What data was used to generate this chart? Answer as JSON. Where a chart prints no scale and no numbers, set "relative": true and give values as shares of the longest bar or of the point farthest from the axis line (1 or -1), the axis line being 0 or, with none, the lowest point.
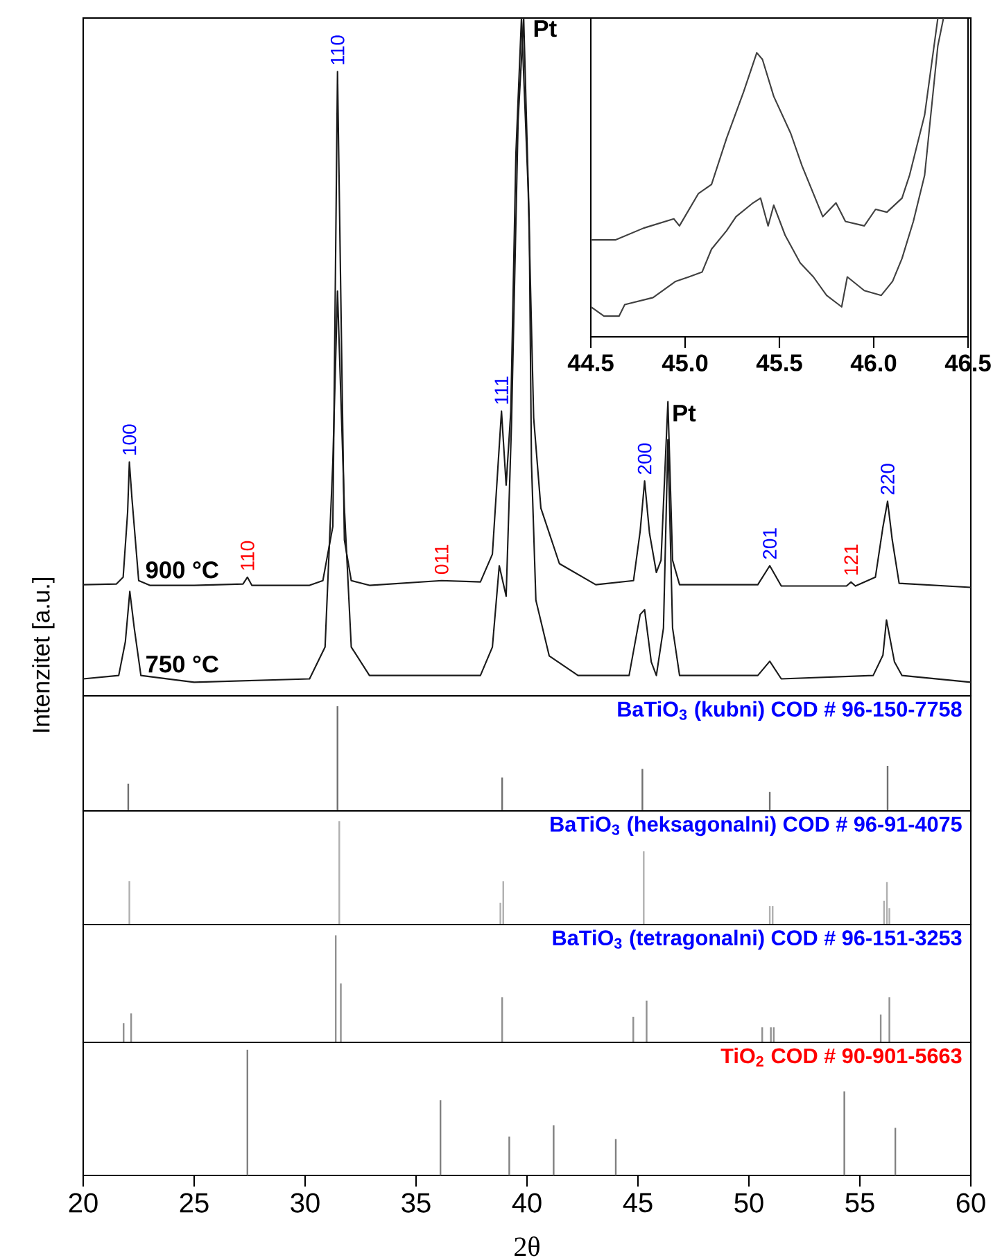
{
  "chart_data": [
    {
      "type": "line",
      "relative": true,
      "xlim": [
        20,
        60
      ],
      "tick_labels": false,
      "ylabel": "Intenzitet [a.u.]",
      "series": [
        {
          "name": "900 °C",
          "color": "#1a1a1a",
          "x": [
            20,
            21.5,
            21.8,
            22.0,
            22.08,
            22.2,
            22.5,
            23,
            25,
            27.2,
            27.4,
            27.6,
            30.2,
            30.8,
            31.25,
            31.46,
            31.77,
            32.08,
            32.9,
            36.15,
            37.9,
            38.44,
            38.85,
            39.06,
            39.27,
            39.5,
            39.75,
            40.05,
            40.3,
            40.625,
            41.46,
            43.1,
            44.8,
            45.1,
            45.3,
            45.52,
            45.83,
            46.04,
            46.35,
            46.56,
            46.875,
            50.4,
            50.94,
            51.46,
            54.4,
            54.6,
            54.8,
            55.7,
            56.04,
            56.25,
            56.46,
            56.77,
            60
          ],
          "values": [
            0.164,
            0.165,
            0.175,
            0.27,
            0.345,
            0.29,
            0.17,
            0.163,
            0.163,
            0.165,
            0.175,
            0.163,
            0.163,
            0.17,
            0.25,
            0.921,
            0.23,
            0.17,
            0.163,
            0.17,
            0.168,
            0.209,
            0.42,
            0.311,
            0.42,
            0.8,
            1.0,
            0.75,
            0.41,
            0.277,
            0.195,
            0.164,
            0.17,
            0.243,
            0.317,
            0.24,
            0.182,
            0.2,
            0.434,
            0.2,
            0.164,
            0.164,
            0.192,
            0.162,
            0.162,
            0.168,
            0.162,
            0.175,
            0.249,
            0.287,
            0.23,
            0.166,
            0.16
          ]
        },
        {
          "name": "750 °C",
          "color": "#1a1a1a",
          "x": [
            20,
            21.6,
            21.9,
            22.1,
            22.3,
            22.6,
            25,
            30.2,
            30.9,
            31.25,
            31.46,
            31.77,
            32.08,
            32.9,
            37.9,
            38.44,
            38.75,
            39.06,
            39.3,
            39.6,
            39.85,
            40.1,
            40.2,
            40.4,
            41.0,
            42.3,
            44.6,
            45.1,
            45.3,
            45.6,
            45.83,
            46.15,
            46.35,
            46.56,
            46.875,
            50.4,
            50.94,
            51.46,
            55.6,
            56.04,
            56.2,
            56.56,
            56.9,
            60
          ],
          "values": [
            0.025,
            0.03,
            0.08,
            0.154,
            0.1,
            0.03,
            0.02,
            0.025,
            0.072,
            0.345,
            0.597,
            0.277,
            0.072,
            0.03,
            0.03,
            0.072,
            0.192,
            0.147,
            0.4,
            0.85,
            1.0,
            0.7,
            0.345,
            0.141,
            0.059,
            0.03,
            0.03,
            0.12,
            0.127,
            0.05,
            0.03,
            0.1,
            0.378,
            0.1,
            0.03,
            0.03,
            0.051,
            0.025,
            0.03,
            0.06,
            0.112,
            0.05,
            0.03,
            0.02
          ]
        }
      ],
      "annotations": [
        {
          "text": "100",
          "x": 22.08,
          "y": 0.345
        },
        {
          "text": "110",
          "x": 27.4,
          "y": 0.175
        },
        {
          "text": "110",
          "x": 31.46,
          "y": 0.921
        },
        {
          "text": "011",
          "x": 36.15,
          "y": 0.17
        },
        {
          "text": "111",
          "x": 38.85,
          "y": 0.42
        },
        {
          "text": "Pt",
          "x": 39.75,
          "y": 1.0
        },
        {
          "text": "200",
          "x": 45.3,
          "y": 0.317
        },
        {
          "text": "Pt",
          "x": 46.35,
          "y": 0.434
        },
        {
          "text": "201",
          "x": 50.94,
          "y": 0.192
        },
        {
          "text": "121",
          "x": 54.6,
          "y": 0.168
        },
        {
          "text": "220",
          "x": 56.25,
          "y": 0.287
        }
      ]
    },
    {
      "type": "line",
      "relative": true,
      "xlim": [
        44.5,
        46.5
      ],
      "tick_labels": "x",
      "xticks": [
        44.5,
        {
          "value": 45,
          "label": "45.0"
        },
        45.5,
        {
          "value": 46,
          "label": "46.0"
        },
        46.5
      ],
      "series": [
        {
          "color": "#404040",
          "x": [
            44.5,
            44.63,
            44.78,
            44.94,
            44.97,
            45.07,
            45.14,
            45.22,
            45.31,
            45.38,
            45.41,
            45.47,
            45.56,
            45.62,
            45.67,
            45.73,
            45.8,
            45.85,
            45.95,
            46.01,
            46.07,
            46.15,
            46.19,
            46.27,
            46.34
          ],
          "values": [
            0.304,
            0.304,
            0.341,
            0.37,
            0.348,
            0.449,
            0.478,
            0.623,
            0.768,
            0.891,
            0.87,
            0.754,
            0.638,
            0.536,
            0.464,
            0.377,
            0.42,
            0.362,
            0.348,
            0.4,
            0.391,
            0.435,
            0.507,
            0.696,
            1.0
          ]
        },
        {
          "color": "#404040",
          "x": [
            44.5,
            44.57,
            44.65,
            44.68,
            44.83,
            44.95,
            45.02,
            45.09,
            45.14,
            45.22,
            45.27,
            45.36,
            45.4,
            45.44,
            45.47,
            45.53,
            45.61,
            45.68,
            45.75,
            45.83,
            45.86,
            45.95,
            46.04,
            46.1,
            46.15,
            46.21,
            46.27,
            46.34,
            46.37
          ],
          "values": [
            0.094,
            0.065,
            0.065,
            0.101,
            0.123,
            0.174,
            0.188,
            0.203,
            0.275,
            0.333,
            0.377,
            0.42,
            0.435,
            0.348,
            0.413,
            0.319,
            0.232,
            0.188,
            0.13,
            0.094,
            0.188,
            0.145,
            0.13,
            0.174,
            0.246,
            0.362,
            0.507,
            0.913,
            1.0
          ]
        }
      ]
    },
    {
      "type": "bar",
      "relative": true,
      "xlim": [
        20,
        60
      ],
      "tick_labels": false,
      "title": "BaTiO$_{3}$ (kubni) COD # 96-150-7758",
      "series": [
        {
          "color": "#707070",
          "x": [
            22.03,
            31.46,
            38.88,
            45.2,
            50.94,
            56.25
          ],
          "values": [
            0.26,
            1,
            0.32,
            0.4,
            0.18,
            0.43
          ]
        }
      ]
    },
    {
      "type": "bar",
      "relative": true,
      "xlim": [
        20,
        60
      ],
      "tick_labels": false,
      "title": "BaTiO$_{3}$ (heksagonalni) COD # 96-91-4075",
      "series": [
        {
          "color": "#b0b0b0",
          "x": [
            22.08,
            31.54,
            38.8,
            38.93,
            45.26,
            50.94,
            51.07,
            56.09,
            56.22,
            56.33
          ],
          "values": [
            0.42,
            1,
            0.21,
            0.42,
            0.71,
            0.18,
            0.18,
            0.23,
            0.41,
            0.16
          ]
        }
      ]
    },
    {
      "type": "bar",
      "relative": true,
      "xlim": [
        20,
        60
      ],
      "tick_labels": false,
      "title": "BaTiO$_{3}$ (tetragonalni) COD # 96-151-3253",
      "series": [
        {
          "color": "#909090",
          "x": [
            21.82,
            22.16,
            31.38,
            31.61,
            38.88,
            44.79,
            45.39,
            50.6,
            50.99,
            51.12,
            55.94,
            56.33
          ],
          "values": [
            0.18,
            0.27,
            1,
            0.55,
            0.42,
            0.24,
            0.39,
            0.14,
            0.14,
            0.14,
            0.26,
            0.42
          ]
        }
      ]
    },
    {
      "type": "bar",
      "relative": true,
      "xlim": [
        20,
        60
      ],
      "tick_labels": "x",
      "title": "TiO$_{2}$ COD # 90-901-5663",
      "xlabel": "2θ",
      "xticks": [
        20,
        25,
        30,
        35,
        40,
        45,
        50,
        55,
        60
      ],
      "series": [
        {
          "color": "#808080",
          "x": [
            27.4,
            36.1,
            39.2,
            41.2,
            44.0,
            54.3,
            56.6
          ],
          "values": [
            1,
            0.6,
            0.31,
            0.4,
            0.29,
            0.67,
            0.38
          ]
        }
      ]
    }
  ]
}
